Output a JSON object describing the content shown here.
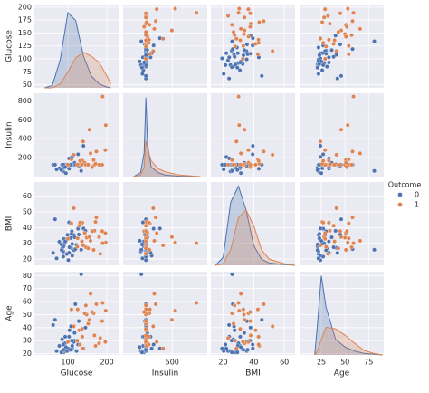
{
  "chart_data": {
    "type": "pairplot",
    "legend_title": "Outcome",
    "series": [
      {
        "name": "0",
        "color": "#4c72b0"
      },
      {
        "name": "1",
        "color": "#dd8452"
      }
    ],
    "variables": [
      {
        "name": "Glucose",
        "xlim": [
          14,
          230
        ],
        "ylim": [
          44,
          205
        ],
        "xticks": [
          100,
          200
        ],
        "yticks": [
          50,
          75,
          100,
          125,
          150,
          175,
          200
        ],
        "kde": {
          "x": [
            40,
            60,
            80,
            100,
            120,
            140,
            160,
            180,
            200,
            210
          ],
          "series": [
            [
              0,
              0.03,
              0.35,
              0.95,
              0.85,
              0.4,
              0.15,
              0.05,
              0.01,
              0
            ],
            [
              0,
              0,
              0.05,
              0.2,
              0.38,
              0.45,
              0.4,
              0.32,
              0.15,
              0.05
            ]
          ]
        }
      },
      {
        "name": "Insulin",
        "xlim": [
          -200,
          1000
        ],
        "ylim": [
          0,
          880
        ],
        "xticks": [
          500
        ],
        "yticks": [
          200,
          400,
          600,
          800
        ],
        "kde": {
          "x": [
            -50,
            50,
            100,
            125,
            150,
            200,
            300,
            400,
            600,
            900
          ],
          "series": [
            [
              0,
              0.05,
              0.3,
              1.0,
              0.4,
              0.12,
              0.05,
              0.02,
              0.005,
              0
            ],
            [
              0,
              0.02,
              0.12,
              0.45,
              0.35,
              0.2,
              0.1,
              0.06,
              0.02,
              0
            ]
          ]
        }
      },
      {
        "name": "BMI",
        "xlim": [
          12,
          67
        ],
        "ylim": [
          16,
          69
        ],
        "xticks": [
          20,
          40,
          60
        ],
        "yticks": [
          20,
          30,
          40,
          50,
          60
        ],
        "kde": {
          "x": [
            15,
            20,
            25,
            30,
            35,
            40,
            45,
            50,
            60,
            67
          ],
          "series": [
            [
              0,
              0.1,
              0.8,
              1.0,
              0.7,
              0.25,
              0.08,
              0.03,
              0.01,
              0
            ],
            [
              0,
              0.02,
              0.2,
              0.6,
              0.7,
              0.5,
              0.2,
              0.08,
              0.02,
              0
            ]
          ]
        }
      },
      {
        "name": "Age",
        "xlim": [
          2,
          91
        ],
        "ylim": [
          19,
          83
        ],
        "xticks": [
          25,
          50,
          75
        ],
        "yticks": [
          20,
          30,
          40,
          50,
          60,
          70,
          80
        ],
        "kde": {
          "x": [
            18,
            21,
            25,
            30,
            40,
            50,
            60,
            70,
            80,
            90
          ],
          "series": [
            [
              0,
              0.4,
              1.0,
              0.6,
              0.2,
              0.1,
              0.05,
              0.02,
              0.01,
              0
            ],
            [
              0,
              0.05,
              0.2,
              0.35,
              0.33,
              0.25,
              0.15,
              0.06,
              0.02,
              0
            ]
          ]
        }
      }
    ],
    "records": [
      [
        85,
        125,
        26.6,
        31,
        0
      ],
      [
        89,
        94,
        28.1,
        21,
        0
      ],
      [
        116,
        125,
        25.6,
        30,
        0
      ],
      [
        78,
        88,
        31,
        26,
        0
      ],
      [
        115,
        125,
        35.3,
        29,
        0
      ],
      [
        110,
        125,
        37.6,
        30,
        0
      ],
      [
        103,
        83,
        43.3,
        33,
        0
      ],
      [
        126,
        235,
        39.3,
        27,
        0
      ],
      [
        99,
        125,
        35.4,
        22,
        0
      ],
      [
        97,
        125,
        23.2,
        22,
        0
      ],
      [
        111,
        207,
        22.1,
        24,
        0
      ],
      [
        88,
        54,
        24.8,
        22,
        0
      ],
      [
        103,
        192,
        24,
        33,
        0
      ],
      [
        101,
        125,
        19.3,
        24,
        0
      ],
      [
        71,
        76,
        20.4,
        22,
        0
      ],
      [
        92,
        125,
        30,
        28,
        0
      ],
      [
        108,
        125,
        27.1,
        41,
        0
      ],
      [
        84,
        66,
        25.7,
        21,
        0
      ],
      [
        90,
        125,
        32.8,
        23,
        0
      ],
      [
        111,
        125,
        29.6,
        26,
        0
      ],
      [
        128,
        110,
        35.6,
        45,
        0
      ],
      [
        95,
        36,
        31.6,
        25,
        0
      ],
      [
        109,
        125,
        36,
        23,
        0
      ],
      [
        122,
        125,
        29,
        22,
        0
      ],
      [
        88,
        125,
        21.5,
        27,
        0
      ],
      [
        93,
        100,
        31.2,
        33,
        0
      ],
      [
        104,
        125,
        27.5,
        38,
        0
      ],
      [
        117,
        145,
        33.8,
        36,
        0
      ],
      [
        62,
        125,
        23.9,
        42,
        0
      ],
      [
        119,
        125,
        26.3,
        58,
        0
      ],
      [
        83,
        70,
        29.3,
        21,
        0
      ],
      [
        67,
        125,
        45.3,
        46,
        0
      ],
      [
        140,
        325,
        39.4,
        24,
        0
      ],
      [
        145,
        130,
        37.9,
        40,
        0
      ],
      [
        107,
        125,
        33.3,
        23,
        0
      ],
      [
        134,
        60,
        25.9,
        81,
        0
      ],
      [
        148,
        125,
        33.6,
        50,
        1
      ],
      [
        183,
        125,
        23.3,
        32,
        1
      ],
      [
        137,
        168,
        43.1,
        33,
        1
      ],
      [
        197,
        543,
        30.5,
        53,
        1
      ],
      [
        125,
        125,
        33.2,
        54,
        1
      ],
      [
        168,
        125,
        38,
        34,
        1
      ],
      [
        189,
        846,
        30.1,
        59,
        1
      ],
      [
        166,
        175,
        25.8,
        51,
        1
      ],
      [
        155,
        495,
        34,
        46,
        1
      ],
      [
        143,
        146,
        36.6,
        51,
        1
      ],
      [
        180,
        125,
        34,
        28,
        1
      ],
      [
        146,
        125,
        27.5,
        57,
        1
      ],
      [
        158,
        245,
        31.6,
        66,
        1
      ],
      [
        129,
        125,
        41.2,
        38,
        1
      ],
      [
        124,
        125,
        27.8,
        30,
        1
      ],
      [
        173,
        265,
        46.5,
        58,
        1
      ],
      [
        152,
        125,
        26.8,
        43,
        1
      ],
      [
        100,
        125,
        32.9,
        29,
        1
      ],
      [
        115,
        230,
        52.3,
        41,
        1
      ],
      [
        162,
        100,
        37.7,
        52,
        1
      ],
      [
        171,
        135,
        43.6,
        26,
        1
      ],
      [
        136,
        125,
        31.2,
        39,
        1
      ],
      [
        196,
        280,
        36.5,
        29,
        1
      ],
      [
        109,
        182,
        42.7,
        54,
        1
      ],
      [
        131,
        166,
        43.2,
        27,
        1
      ],
      [
        188,
        125,
        37.7,
        45,
        1
      ],
      [
        139,
        370,
        28.7,
        24,
        1
      ]
    ]
  }
}
